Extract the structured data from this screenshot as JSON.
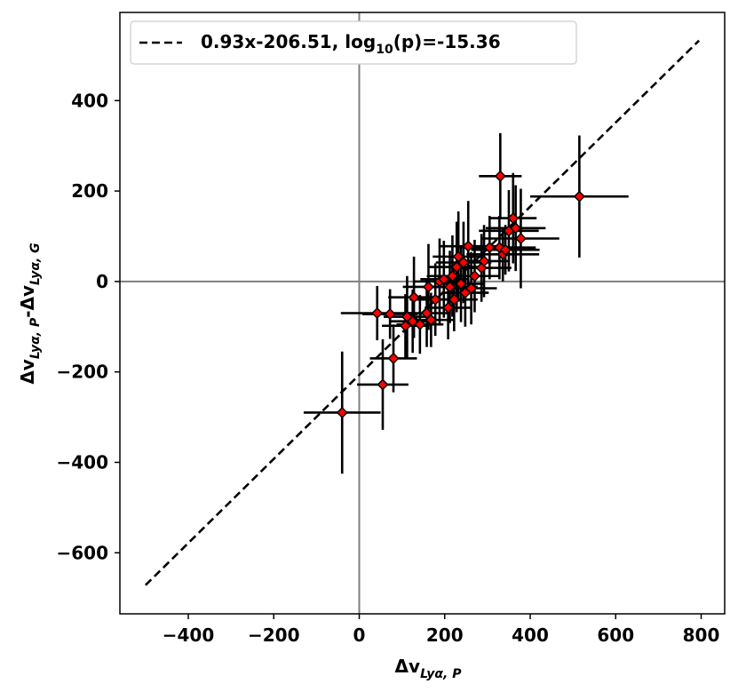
{
  "chart_data": {
    "type": "scatter",
    "xlim": [
      -560,
      855
    ],
    "ylim": [
      -735,
      595
    ],
    "xticks": [
      -400,
      -200,
      0,
      200,
      400,
      600,
      800
    ],
    "yticks": [
      400,
      200,
      0,
      -200,
      -400,
      -600
    ],
    "xtick_labels": [
      "−400",
      "−200",
      "0",
      "200",
      "400",
      "600",
      "800"
    ],
    "ytick_labels": [
      "400",
      "200",
      "0",
      "−200",
      "−400",
      "−600"
    ],
    "xlabel": {
      "main": "Δv",
      "sub": "Lyα, P"
    },
    "ylabel": {
      "main1": "Δv",
      "sub1": "Lyα, P",
      "mid": "-",
      "main2": "Δv",
      "sub2": "Lyα, G"
    },
    "reference_lines": {
      "x": 0,
      "y": 0,
      "color": "#7f7f7f"
    },
    "fit": {
      "slope": 0.93,
      "intercept": -206.51,
      "x_range": [
        -500,
        795
      ],
      "style": "dashed",
      "color": "#000000"
    },
    "legend": {
      "text_main": "0.93x-206.51, log",
      "text_sub": "10",
      "text_end": "(p)=-15.36",
      "position": "top-left"
    },
    "marker": {
      "shape": "diamond",
      "face_color": "#ff0000",
      "edge_color": "#000000"
    },
    "points": [
      {
        "x": -40,
        "y": -290,
        "xerr": 90,
        "yerr": 135
      },
      {
        "x": 55,
        "y": -228,
        "xerr": 60,
        "yerr": 100
      },
      {
        "x": 80,
        "y": -170,
        "xerr": 55,
        "yerr": 75
      },
      {
        "x": 42,
        "y": -70,
        "xerr": 85,
        "yerr": 60
      },
      {
        "x": 72,
        "y": -72,
        "xerr": 65,
        "yerr": 55
      },
      {
        "x": 108,
        "y": -98,
        "xerr": 55,
        "yerr": 70
      },
      {
        "x": 112,
        "y": -78,
        "xerr": 55,
        "yerr": 90
      },
      {
        "x": 125,
        "y": -88,
        "xerr": 55,
        "yerr": 70
      },
      {
        "x": 128,
        "y": -35,
        "xerr": 60,
        "yerr": 90
      },
      {
        "x": 142,
        "y": -95,
        "xerr": 55,
        "yerr": 65
      },
      {
        "x": 158,
        "y": -70,
        "xerr": 55,
        "yerr": 75
      },
      {
        "x": 162,
        "y": -12,
        "xerr": 60,
        "yerr": 95
      },
      {
        "x": 168,
        "y": -85,
        "xerr": 55,
        "yerr": 60
      },
      {
        "x": 178,
        "y": -40,
        "xerr": 60,
        "yerr": 80
      },
      {
        "x": 188,
        "y": 0,
        "xerr": 60,
        "yerr": 95
      },
      {
        "x": 198,
        "y": 5,
        "xerr": 55,
        "yerr": 85
      },
      {
        "x": 208,
        "y": -58,
        "xerr": 55,
        "yerr": 70
      },
      {
        "x": 212,
        "y": -12,
        "xerr": 65,
        "yerr": 80
      },
      {
        "x": 218,
        "y": 12,
        "xerr": 60,
        "yerr": 90
      },
      {
        "x": 222,
        "y": -40,
        "xerr": 55,
        "yerr": 70
      },
      {
        "x": 228,
        "y": 32,
        "xerr": 65,
        "yerr": 100
      },
      {
        "x": 232,
        "y": 55,
        "xerr": 60,
        "yerr": 100
      },
      {
        "x": 238,
        "y": -5,
        "xerr": 55,
        "yerr": 85
      },
      {
        "x": 244,
        "y": 42,
        "xerr": 65,
        "yerr": 90
      },
      {
        "x": 248,
        "y": -25,
        "xerr": 55,
        "yerr": 75
      },
      {
        "x": 255,
        "y": 78,
        "xerr": 65,
        "yerr": 100
      },
      {
        "x": 262,
        "y": -15,
        "xerr": 60,
        "yerr": 80
      },
      {
        "x": 270,
        "y": 12,
        "xerr": 60,
        "yerr": 80
      },
      {
        "x": 286,
        "y": 30,
        "xerr": 70,
        "yerr": 75
      },
      {
        "x": 292,
        "y": 45,
        "xerr": 60,
        "yerr": 80
      },
      {
        "x": 305,
        "y": 75,
        "xerr": 70,
        "yerr": 70
      },
      {
        "x": 328,
        "y": 75,
        "xerr": 85,
        "yerr": 70
      },
      {
        "x": 330,
        "y": 233,
        "xerr": 50,
        "yerr": 95
      },
      {
        "x": 336,
        "y": 60,
        "xerr": 85,
        "yerr": 60
      },
      {
        "x": 342,
        "y": 70,
        "xerr": 80,
        "yerr": 55
      },
      {
        "x": 350,
        "y": 112,
        "xerr": 70,
        "yerr": 90
      },
      {
        "x": 360,
        "y": 140,
        "xerr": 55,
        "yerr": 100
      },
      {
        "x": 366,
        "y": 118,
        "xerr": 70,
        "yerr": 95
      },
      {
        "x": 378,
        "y": 95,
        "xerr": 90,
        "yerr": 110
      },
      {
        "x": 515,
        "y": 188,
        "xerr": 115,
        "yerr": 135
      }
    ]
  }
}
